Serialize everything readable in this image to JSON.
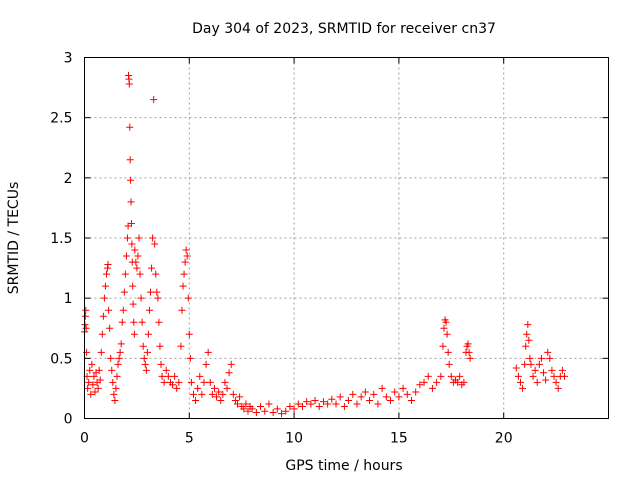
{
  "chart_data": {
    "type": "scatter",
    "title": "Day 304 of 2023, SRMTID for receiver cn37",
    "xlabel": "GPS time / hours",
    "ylabel": "SRMTID / TECUs",
    "xlim": [
      0,
      25
    ],
    "ylim": [
      0,
      3
    ],
    "xticks": [
      0,
      5,
      10,
      15,
      20
    ],
    "xtick_labels": [
      "0",
      "5",
      "10",
      "15",
      "20"
    ],
    "yticks": [
      0,
      0.5,
      1,
      1.5,
      2,
      2.5,
      3
    ],
    "ytick_labels": [
      "0",
      "0.5",
      "1",
      "1.5",
      "2",
      "2.5",
      "3"
    ],
    "grid": true,
    "marker": "+",
    "color": "#ff0000",
    "series": [
      {
        "name": "SRMTID",
        "points": [
          [
            0.0,
            0.72
          ],
          [
            0.02,
            0.78
          ],
          [
            0.04,
            0.85
          ],
          [
            0.06,
            0.9
          ],
          [
            0.08,
            0.75
          ],
          [
            0.1,
            0.55
          ],
          [
            0.12,
            0.35
          ],
          [
            0.15,
            0.25
          ],
          [
            0.2,
            0.3
          ],
          [
            0.25,
            0.4
          ],
          [
            0.3,
            0.2
          ],
          [
            0.35,
            0.45
          ],
          [
            0.4,
            0.28
          ],
          [
            0.45,
            0.35
          ],
          [
            0.5,
            0.22
          ],
          [
            0.55,
            0.38
          ],
          [
            0.6,
            0.3
          ],
          [
            0.65,
            0.25
          ],
          [
            0.7,
            0.4
          ],
          [
            0.75,
            0.32
          ],
          [
            0.8,
            0.55
          ],
          [
            0.85,
            0.7
          ],
          [
            0.9,
            0.85
          ],
          [
            0.95,
            1.0
          ],
          [
            1.0,
            1.1
          ],
          [
            1.05,
            1.2
          ],
          [
            1.1,
            1.25
          ],
          [
            1.12,
            1.28
          ],
          [
            1.15,
            0.9
          ],
          [
            1.2,
            0.75
          ],
          [
            1.25,
            0.5
          ],
          [
            1.3,
            0.4
          ],
          [
            1.35,
            0.3
          ],
          [
            1.4,
            0.2
          ],
          [
            1.45,
            0.15
          ],
          [
            1.5,
            0.25
          ],
          [
            1.55,
            0.35
          ],
          [
            1.6,
            0.45
          ],
          [
            1.65,
            0.5
          ],
          [
            1.7,
            0.55
          ],
          [
            1.75,
            0.62
          ],
          [
            1.8,
            0.8
          ],
          [
            1.85,
            0.9
          ],
          [
            1.9,
            1.05
          ],
          [
            1.95,
            1.2
          ],
          [
            2.0,
            1.35
          ],
          [
            2.05,
            1.5
          ],
          [
            2.08,
            1.6
          ],
          [
            2.1,
            2.85
          ],
          [
            2.12,
            2.82
          ],
          [
            2.14,
            2.78
          ],
          [
            2.16,
            2.42
          ],
          [
            2.18,
            2.15
          ],
          [
            2.2,
            1.98
          ],
          [
            2.22,
            1.8
          ],
          [
            2.24,
            1.62
          ],
          [
            2.26,
            1.45
          ],
          [
            2.28,
            1.3
          ],
          [
            2.3,
            1.1
          ],
          [
            2.32,
            0.95
          ],
          [
            2.35,
            0.8
          ],
          [
            2.38,
            0.7
          ],
          [
            2.4,
            1.4
          ],
          [
            2.45,
            1.3
          ],
          [
            2.5,
            1.25
          ],
          [
            2.55,
            1.35
          ],
          [
            2.6,
            1.5
          ],
          [
            2.65,
            1.2
          ],
          [
            2.7,
            1.0
          ],
          [
            2.75,
            0.8
          ],
          [
            2.8,
            0.6
          ],
          [
            2.85,
            0.5
          ],
          [
            2.9,
            0.45
          ],
          [
            2.95,
            0.4
          ],
          [
            3.0,
            0.55
          ],
          [
            3.05,
            0.7
          ],
          [
            3.1,
            0.9
          ],
          [
            3.15,
            1.05
          ],
          [
            3.2,
            1.25
          ],
          [
            3.25,
            1.5
          ],
          [
            3.3,
            2.65
          ],
          [
            3.35,
            1.45
          ],
          [
            3.4,
            1.2
          ],
          [
            3.45,
            1.05
          ],
          [
            3.5,
            1.0
          ],
          [
            3.55,
            0.8
          ],
          [
            3.6,
            0.6
          ],
          [
            3.65,
            0.45
          ],
          [
            3.7,
            0.35
          ],
          [
            3.8,
            0.3
          ],
          [
            3.9,
            0.4
          ],
          [
            4.0,
            0.35
          ],
          [
            4.1,
            0.3
          ],
          [
            4.2,
            0.28
          ],
          [
            4.3,
            0.35
          ],
          [
            4.4,
            0.25
          ],
          [
            4.5,
            0.3
          ],
          [
            4.6,
            0.6
          ],
          [
            4.65,
            0.9
          ],
          [
            4.7,
            1.1
          ],
          [
            4.75,
            1.2
          ],
          [
            4.8,
            1.3
          ],
          [
            4.85,
            1.4
          ],
          [
            4.9,
            1.35
          ],
          [
            4.95,
            1.0
          ],
          [
            5.0,
            0.7
          ],
          [
            5.05,
            0.5
          ],
          [
            5.1,
            0.3
          ],
          [
            5.2,
            0.2
          ],
          [
            5.3,
            0.15
          ],
          [
            5.4,
            0.25
          ],
          [
            5.5,
            0.35
          ],
          [
            5.6,
            0.2
          ],
          [
            5.7,
            0.3
          ],
          [
            5.8,
            0.45
          ],
          [
            5.9,
            0.55
          ],
          [
            6.0,
            0.3
          ],
          [
            6.1,
            0.2
          ],
          [
            6.2,
            0.25
          ],
          [
            6.3,
            0.18
          ],
          [
            6.4,
            0.22
          ],
          [
            6.5,
            0.15
          ],
          [
            6.6,
            0.2
          ],
          [
            6.7,
            0.3
          ],
          [
            6.8,
            0.25
          ],
          [
            6.9,
            0.38
          ],
          [
            7.0,
            0.45
          ],
          [
            7.1,
            0.2
          ],
          [
            7.2,
            0.15
          ],
          [
            7.3,
            0.12
          ],
          [
            7.4,
            0.18
          ],
          [
            7.5,
            0.1
          ],
          [
            7.6,
            0.08
          ],
          [
            7.7,
            0.12
          ],
          [
            7.8,
            0.06
          ],
          [
            7.9,
            0.1
          ],
          [
            8.0,
            0.08
          ],
          [
            8.2,
            0.05
          ],
          [
            8.4,
            0.1
          ],
          [
            8.6,
            0.06
          ],
          [
            8.8,
            0.12
          ],
          [
            9.0,
            0.05
          ],
          [
            9.2,
            0.08
          ],
          [
            9.4,
            0.04
          ],
          [
            9.6,
            0.06
          ],
          [
            9.8,
            0.1
          ],
          [
            10.0,
            0.08
          ],
          [
            10.2,
            0.12
          ],
          [
            10.4,
            0.1
          ],
          [
            10.6,
            0.14
          ],
          [
            10.8,
            0.12
          ],
          [
            11.0,
            0.15
          ],
          [
            11.2,
            0.1
          ],
          [
            11.4,
            0.14
          ],
          [
            11.6,
            0.12
          ],
          [
            11.8,
            0.16
          ],
          [
            12.0,
            0.12
          ],
          [
            12.2,
            0.18
          ],
          [
            12.4,
            0.1
          ],
          [
            12.6,
            0.15
          ],
          [
            12.8,
            0.2
          ],
          [
            13.0,
            0.12
          ],
          [
            13.2,
            0.18
          ],
          [
            13.4,
            0.22
          ],
          [
            13.6,
            0.15
          ],
          [
            13.8,
            0.2
          ],
          [
            14.0,
            0.12
          ],
          [
            14.2,
            0.25
          ],
          [
            14.4,
            0.18
          ],
          [
            14.6,
            0.15
          ],
          [
            14.8,
            0.22
          ],
          [
            15.0,
            0.18
          ],
          [
            15.2,
            0.25
          ],
          [
            15.4,
            0.2
          ],
          [
            15.6,
            0.15
          ],
          [
            15.8,
            0.22
          ],
          [
            16.0,
            0.28
          ],
          [
            16.2,
            0.3
          ],
          [
            16.4,
            0.35
          ],
          [
            16.6,
            0.25
          ],
          [
            16.8,
            0.3
          ],
          [
            17.0,
            0.35
          ],
          [
            17.1,
            0.6
          ],
          [
            17.15,
            0.75
          ],
          [
            17.2,
            0.82
          ],
          [
            17.25,
            0.8
          ],
          [
            17.3,
            0.7
          ],
          [
            17.35,
            0.55
          ],
          [
            17.4,
            0.45
          ],
          [
            17.5,
            0.35
          ],
          [
            17.6,
            0.3
          ],
          [
            17.7,
            0.32
          ],
          [
            17.8,
            0.3
          ],
          [
            17.9,
            0.35
          ],
          [
            18.0,
            0.28
          ],
          [
            18.1,
            0.3
          ],
          [
            18.2,
            0.55
          ],
          [
            18.25,
            0.6
          ],
          [
            18.3,
            0.62
          ],
          [
            18.35,
            0.55
          ],
          [
            18.4,
            0.5
          ],
          [
            20.6,
            0.42
          ],
          [
            20.7,
            0.35
          ],
          [
            20.8,
            0.3
          ],
          [
            20.9,
            0.25
          ],
          [
            21.0,
            0.45
          ],
          [
            21.05,
            0.6
          ],
          [
            21.1,
            0.7
          ],
          [
            21.15,
            0.78
          ],
          [
            21.2,
            0.65
          ],
          [
            21.25,
            0.5
          ],
          [
            21.3,
            0.45
          ],
          [
            21.4,
            0.35
          ],
          [
            21.5,
            0.4
          ],
          [
            21.6,
            0.3
          ],
          [
            21.7,
            0.45
          ],
          [
            21.8,
            0.5
          ],
          [
            21.9,
            0.38
          ],
          [
            22.0,
            0.32
          ],
          [
            22.1,
            0.55
          ],
          [
            22.2,
            0.5
          ],
          [
            22.3,
            0.4
          ],
          [
            22.4,
            0.35
          ],
          [
            22.5,
            0.3
          ],
          [
            22.6,
            0.25
          ],
          [
            22.7,
            0.35
          ],
          [
            22.8,
            0.4
          ],
          [
            22.9,
            0.35
          ]
        ]
      }
    ]
  }
}
